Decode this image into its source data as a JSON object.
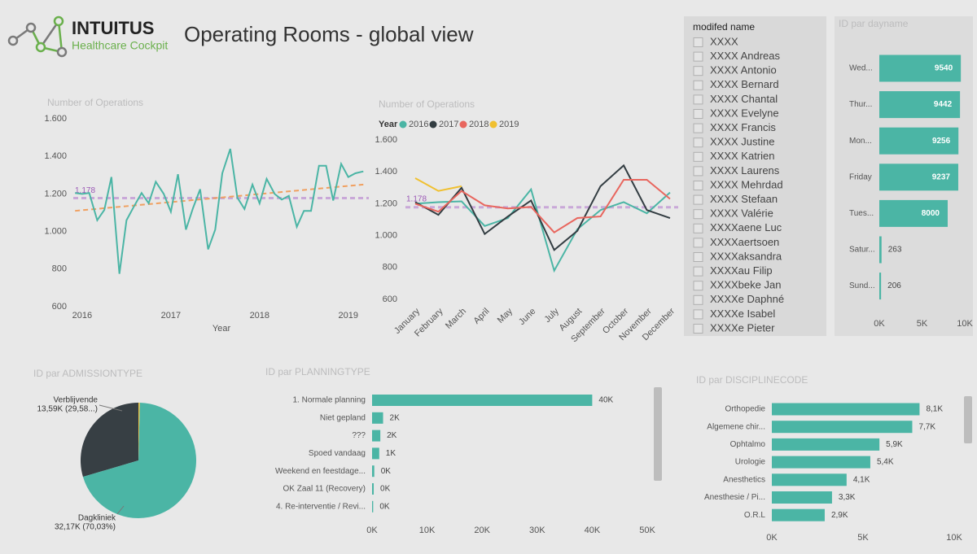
{
  "header": {
    "brand": "INTUITUS",
    "subtitle": "Healthcare Cockpit",
    "title": "Operating Rooms - global view"
  },
  "operations_trend": {
    "type": "line",
    "title": "Number of Operations",
    "x_label": "Year",
    "color": "#4bb5a5",
    "x": [
      2015.92,
      2016.0,
      2016.08,
      2016.17,
      2016.25,
      2016.33,
      2016.42,
      2016.5,
      2016.58,
      2016.67,
      2016.75,
      2016.83,
      2016.92,
      2017.0,
      2017.08,
      2017.17,
      2017.25,
      2017.33,
      2017.42,
      2017.5,
      2017.58,
      2017.67,
      2017.75,
      2017.83,
      2017.92,
      2018.0,
      2018.08,
      2018.17,
      2018.25,
      2018.33,
      2018.42,
      2018.5,
      2018.58,
      2018.67,
      2018.75,
      2018.83,
      2018.92,
      2019.0,
      2019.08,
      2019.17
    ],
    "values": [
      1205,
      1200,
      1205,
      1060,
      1115,
      1290,
      775,
      1060,
      1130,
      1205,
      1150,
      1265,
      1200,
      1105,
      1305,
      1010,
      1125,
      1225,
      905,
      1010,
      1310,
      1440,
      1180,
      1120,
      1250,
      1150,
      1280,
      1200,
      1170,
      1190,
      1025,
      1110,
      1110,
      1350,
      1350,
      1165,
      1360,
      1290,
      1310,
      1320
    ],
    "trend": {
      "x": [
        2015.92,
        2019.17
      ],
      "values": [
        1110,
        1250
      ],
      "color": "#f0a060"
    },
    "average": {
      "value": 1178,
      "label": "1.178",
      "color": "#c9a8d8"
    },
    "xlim": [
      2015.9,
      2019.25
    ],
    "xticks": [
      2016,
      2017,
      2018,
      2019
    ],
    "ylim": [
      600,
      1600
    ],
    "yticks": [
      600,
      800,
      {
        "value": 1000,
        "label": "1.000"
      },
      {
        "value": 1200,
        "label": "1.200"
      },
      {
        "value": 1400,
        "label": "1.400"
      },
      {
        "value": 1600,
        "label": "1.600"
      }
    ]
  },
  "operations_by_month": {
    "type": "line",
    "title": "Number of Operations",
    "legend_title": "Year",
    "categories": [
      "January",
      "February",
      "March",
      "April",
      "May",
      "June",
      "July",
      "August",
      "September",
      "October",
      "November",
      "December"
    ],
    "series": [
      {
        "name": "2016",
        "color": "#4bb5a5",
        "values": [
          1200,
          1210,
          1215,
          1060,
          1110,
          1290,
          780,
          1040,
          1160,
          1210,
          1140,
          1270
        ]
      },
      {
        "name": "2017",
        "color": "#333d42",
        "values": [
          1210,
          1130,
          1300,
          1010,
          1120,
          1220,
          910,
          1030,
          1310,
          1440,
          1160,
          1110
        ]
      },
      {
        "name": "2018",
        "color": "#e8665e",
        "values": [
          1200,
          1150,
          1280,
          1190,
          1170,
          1180,
          1020,
          1110,
          1120,
          1350,
          1350,
          1230
        ]
      },
      {
        "name": "2019",
        "color": "#f0c030",
        "values": [
          1360,
          1280,
          1310,
          null,
          null,
          null,
          null,
          null,
          null,
          null,
          null,
          null
        ]
      }
    ],
    "average": {
      "value": 1178,
      "label": "1.178",
      "color": "#c9a8d8"
    },
    "ylim": [
      600,
      1600
    ],
    "yticks": [
      600,
      800,
      {
        "value": 1000,
        "label": "1.000"
      },
      {
        "value": 1200,
        "label": "1.200"
      },
      {
        "value": 1400,
        "label": "1.400"
      },
      {
        "value": 1600,
        "label": "1.600"
      }
    ]
  },
  "name_slicer": {
    "title": "modifed name",
    "items": [
      "XXXX",
      "XXXX Andreas",
      "XXXX Antonio",
      "XXXX Bernard",
      "XXXX Chantal",
      "XXXX Evelyne",
      "XXXX Francis",
      "XXXX Justine",
      "XXXX Katrien",
      "XXXX Laurens",
      "XXXX Mehrdad",
      "XXXX Stefaan",
      "XXXX Valérie",
      "XXXXaene Luc",
      "XXXXaertsoen",
      "XXXXaksandra",
      "XXXXau Filip",
      "XXXXbeke Jan",
      "XXXXe Daphné",
      "XXXXe Isabel",
      "XXXXe Pieter"
    ]
  },
  "dayname": {
    "type": "hbar",
    "title": "ID par dayname",
    "color": "#4bb5a5",
    "categories": [
      "Wed...",
      "Thur...",
      "Mon...",
      "Friday",
      "Tues...",
      "Satur...",
      "Sund..."
    ],
    "values": [
      9540,
      9442,
      9256,
      9237,
      8000,
      263,
      206
    ],
    "xlim": [
      0,
      10000
    ],
    "xticks": [
      {
        "value": 0,
        "label": "0K"
      },
      {
        "value": 5000,
        "label": "5K"
      },
      {
        "value": 10000,
        "label": "10K"
      }
    ]
  },
  "admission": {
    "type": "pie",
    "title": "ID par ADMISSIONTYPE",
    "names": [
      "Verblijvende",
      "Dagkliniek",
      null
    ],
    "values": [
      13590,
      32170,
      180
    ],
    "value_labels": [
      "13,59K (29,58...)",
      "32,17K (70,03%)",
      null
    ],
    "colors": [
      "#373f44",
      "#4bb5a5",
      "#e8c24a"
    ]
  },
  "planning": {
    "type": "hbar",
    "title": "ID par PLANNINGTYPE",
    "color": "#4bb5a5",
    "categories": [
      "1. Normale planning",
      "Niet gepland",
      "???",
      "Spoed vandaag",
      "Weekend en feestdage...",
      "OK Zaal 11 (Recovery)",
      "4. Re-interventie / Revi..."
    ],
    "values": [
      40000,
      2000,
      1500,
      1300,
      400,
      300,
      200
    ],
    "value_labels": [
      "40K",
      "2K",
      "2K",
      "1K",
      "0K",
      "0K",
      "0K"
    ],
    "xlim": [
      0,
      50000
    ],
    "xticks": [
      {
        "value": 0,
        "label": "0K"
      },
      {
        "value": 10000,
        "label": "10K"
      },
      {
        "value": 20000,
        "label": "20K"
      },
      {
        "value": 30000,
        "label": "30K"
      },
      {
        "value": 40000,
        "label": "40K"
      },
      {
        "value": 50000,
        "label": "50K"
      }
    ]
  },
  "discipline": {
    "type": "hbar",
    "title": "ID par DISCIPLINECODE",
    "color": "#4bb5a5",
    "categories": [
      "Orthopedie",
      "Algemene chir...",
      "Ophtalmo",
      "Urologie",
      "Anesthetics",
      "Anesthesie / Pi...",
      "O.R.L"
    ],
    "values": [
      8100,
      7700,
      5900,
      5400,
      4100,
      3300,
      2900
    ],
    "value_labels": [
      "8,1K",
      "7,7K",
      "5,9K",
      "5,4K",
      "4,1K",
      "3,3K",
      "2,9K"
    ],
    "xlim": [
      0,
      10000
    ],
    "xticks": [
      {
        "value": 0,
        "label": "0K"
      },
      {
        "value": 5000,
        "label": "5K"
      },
      {
        "value": 10000,
        "label": "10K"
      }
    ]
  }
}
